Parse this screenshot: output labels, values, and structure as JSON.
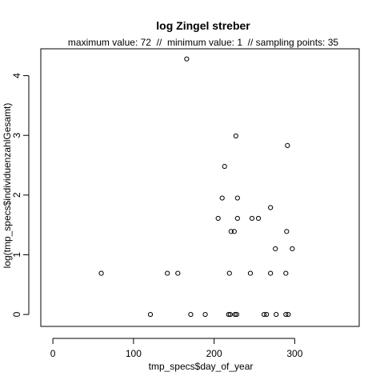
{
  "chart_data": {
    "type": "scatter",
    "title": "log Zingel streber",
    "subtitle": "maximum value: 72  //  minimum value: 1  // sampling points: 35",
    "xlabel": "tmp_specs$day_of_year",
    "ylabel": "log(tmp_specs$individuenzahlGesamt)",
    "xlim": [
      -15,
      380
    ],
    "ylim": [
      -0.2,
      4.45
    ],
    "x_ticks": [
      0,
      100,
      200,
      300
    ],
    "y_ticks": [
      0,
      1,
      2,
      3,
      4
    ],
    "x_tick_labels": [
      "0",
      "100",
      "200",
      "300"
    ],
    "y_tick_labels": [
      "0",
      "1",
      "2",
      "3",
      "4"
    ],
    "grid": false,
    "legend": "none",
    "points": [
      {
        "x": 60,
        "y": 0.69
      },
      {
        "x": 121,
        "y": 0
      },
      {
        "x": 142,
        "y": 0.69
      },
      {
        "x": 155,
        "y": 0.69
      },
      {
        "x": 166,
        "y": 4.28
      },
      {
        "x": 171,
        "y": 0
      },
      {
        "x": 189,
        "y": 0
      },
      {
        "x": 205,
        "y": 1.61
      },
      {
        "x": 210,
        "y": 1.95
      },
      {
        "x": 213,
        "y": 2.48
      },
      {
        "x": 218,
        "y": 0
      },
      {
        "x": 219,
        "y": 0.69
      },
      {
        "x": 220,
        "y": 0
      },
      {
        "x": 221,
        "y": 1.39
      },
      {
        "x": 225,
        "y": 1.39
      },
      {
        "x": 226,
        "y": 0
      },
      {
        "x": 227,
        "y": 2.99
      },
      {
        "x": 228,
        "y": 0
      },
      {
        "x": 229,
        "y": 1.95
      },
      {
        "x": 229,
        "y": 1.61
      },
      {
        "x": 245,
        "y": 0.69
      },
      {
        "x": 247,
        "y": 1.61
      },
      {
        "x": 255,
        "y": 1.61
      },
      {
        "x": 262,
        "y": 0
      },
      {
        "x": 265,
        "y": 0
      },
      {
        "x": 270,
        "y": 1.79
      },
      {
        "x": 270,
        "y": 0.69
      },
      {
        "x": 276,
        "y": 1.1
      },
      {
        "x": 277,
        "y": 0
      },
      {
        "x": 289,
        "y": 0.69
      },
      {
        "x": 289,
        "y": 0
      },
      {
        "x": 290,
        "y": 1.39
      },
      {
        "x": 291,
        "y": 2.83
      },
      {
        "x": 292,
        "y": 0
      },
      {
        "x": 297,
        "y": 1.1
      }
    ]
  }
}
